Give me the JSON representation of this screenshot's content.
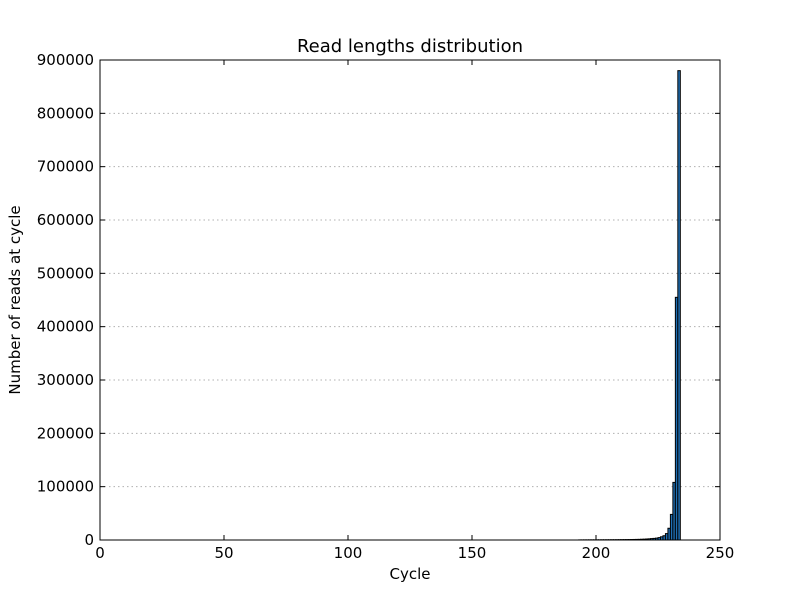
{
  "chart_data": {
    "type": "bar",
    "title": "Read lengths distribution",
    "xlabel": "Cycle",
    "ylabel": "Number of reads at cycle",
    "xlim": [
      0,
      250
    ],
    "ylim": [
      0,
      900000
    ],
    "x_ticks": [
      "0",
      "50",
      "100",
      "150",
      "200",
      "250"
    ],
    "y_ticks": [
      "0",
      "100000",
      "200000",
      "300000",
      "400000",
      "500000",
      "600000",
      "700000",
      "800000",
      "900000"
    ],
    "grid": "horizontal dotted",
    "bar_color": "#1f6fb4",
    "x": [
      193,
      194,
      195,
      196,
      197,
      198,
      199,
      200,
      201,
      202,
      203,
      204,
      205,
      206,
      207,
      208,
      209,
      210,
      211,
      212,
      213,
      214,
      215,
      216,
      217,
      218,
      219,
      220,
      221,
      222,
      223,
      224,
      225,
      226,
      227,
      228,
      229,
      230,
      231,
      232,
      233
    ],
    "values": [
      200,
      200,
      250,
      250,
      300,
      300,
      300,
      350,
      350,
      400,
      400,
      450,
      450,
      500,
      500,
      550,
      600,
      650,
      700,
      750,
      800,
      900,
      1000,
      1100,
      1200,
      1400,
      1600,
      1900,
      2200,
      2600,
      3000,
      3500,
      4500,
      6000,
      8000,
      12000,
      22000,
      48000,
      108000,
      455000,
      880000
    ]
  }
}
